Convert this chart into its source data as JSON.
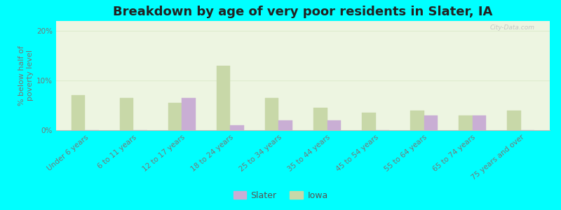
{
  "title": "Breakdown by age of very poor residents in Slater, IA",
  "ylabel": "% below half of\npoverty level",
  "categories": [
    "Under 6 years",
    "6 to 11 years",
    "12 to 17 years",
    "18 to 24 years",
    "25 to 34 years",
    "35 to 44 years",
    "45 to 54 years",
    "55 to 64 years",
    "65 to 74 years",
    "75 years and over"
  ],
  "slater_values": [
    0,
    0,
    6.5,
    1.0,
    2.0,
    2.0,
    0,
    3.0,
    3.0,
    0
  ],
  "iowa_values": [
    7.0,
    6.5,
    5.5,
    13.0,
    6.5,
    4.5,
    3.5,
    4.0,
    3.0,
    4.0
  ],
  "slater_color": "#c9aed4",
  "iowa_color": "#c8d8a8",
  "background_color": "#00ffff",
  "plot_bg_color": "#edf5e1",
  "bar_width": 0.28,
  "ylim": [
    0,
    22
  ],
  "yticks": [
    0,
    10,
    20
  ],
  "ytick_labels": [
    "0%",
    "10%",
    "20%"
  ],
  "legend_slater": "Slater",
  "legend_iowa": "Iowa",
  "title_fontsize": 13,
  "ylabel_fontsize": 8,
  "tick_fontsize": 7.5,
  "legend_fontsize": 9
}
